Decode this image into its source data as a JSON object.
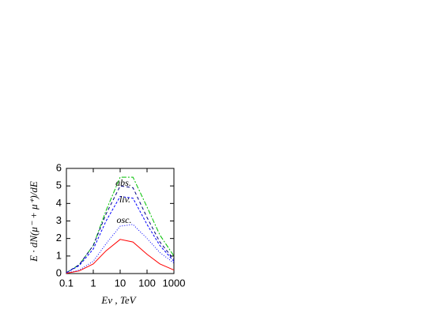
{
  "chart_data": {
    "type": "line",
    "x_label": "Eν , TeV",
    "y_label": "E · dN(μ⁻ + μ⁺)/dE",
    "annotations": [
      "abs.",
      "liv.",
      "osc."
    ],
    "x": [
      0.1,
      0.3,
      1,
      3,
      10,
      30,
      100,
      300,
      1000
    ],
    "series": [
      {
        "color": "#00c000",
        "dash": "6 2 2 2",
        "values": [
          0.05,
          0.5,
          1.6,
          3.6,
          5.5,
          5.5,
          3.8,
          2.2,
          1.0
        ]
      },
      {
        "color": "#000080",
        "dash": "4 3",
        "values": [
          0.05,
          0.5,
          1.6,
          3.4,
          5.0,
          4.9,
          3.2,
          1.8,
          0.8
        ]
      },
      {
        "color": "#0000ff",
        "dash": "3 2",
        "values": [
          0.05,
          0.45,
          1.4,
          3.0,
          4.4,
          4.3,
          2.8,
          1.6,
          0.7
        ]
      },
      {
        "color": "#0000ff",
        "dash": "1 2",
        "values": [
          0.02,
          0.2,
          0.7,
          1.7,
          2.7,
          2.8,
          2.0,
          1.2,
          0.6
        ]
      },
      {
        "color": "#ff0000",
        "dash": "",
        "values": [
          0.02,
          0.15,
          0.55,
          1.3,
          1.95,
          1.8,
          1.1,
          0.55,
          0.2
        ]
      }
    ],
    "xlim": [
      0.1,
      1000
    ],
    "ylim": [
      0,
      6
    ],
    "xticks": [
      0.1,
      1,
      10,
      100,
      1000
    ],
    "yticks": [
      0,
      1,
      2,
      3,
      4,
      5,
      6
    ],
    "xscale": "log"
  }
}
